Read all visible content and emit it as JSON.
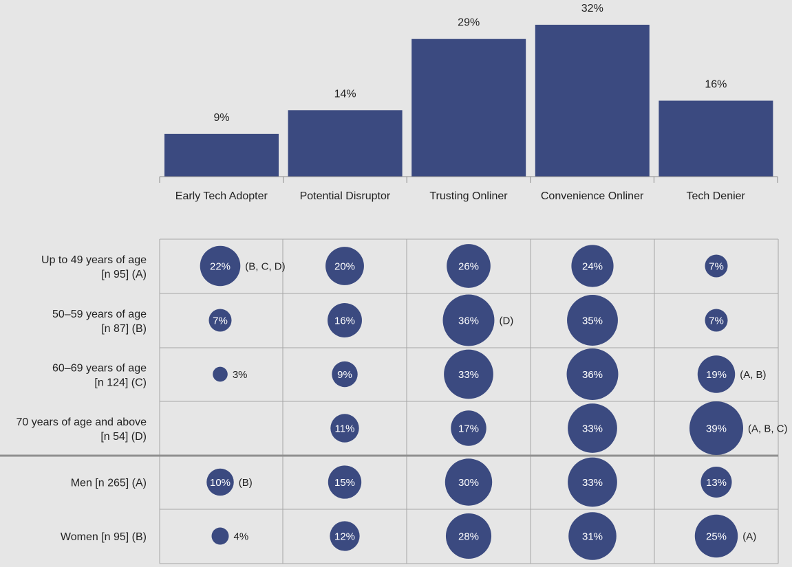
{
  "colors": {
    "bar": "#3b4a80",
    "bubble": "#3b4a80",
    "grid": "#a6a6a6",
    "background": "#e6e6e6",
    "text": "#222222",
    "bubble_text": "#ffffff"
  },
  "chart_data": [
    {
      "type": "bar",
      "categories": [
        "Early Tech Adopter",
        "Potential Disruptor",
        "Trusting Onliner",
        "Convenience Onliner",
        "Tech Denier"
      ],
      "values": [
        9,
        14,
        29,
        32,
        16
      ],
      "value_labels": [
        "9%",
        "14%",
        "29%",
        "32%",
        "16%"
      ],
      "unit": "%",
      "ylim": [
        0,
        32
      ],
      "grid": false,
      "legend": "none"
    },
    {
      "type": "table",
      "subtype": "bubble-matrix",
      "columns": [
        "Early Tech Adopter",
        "Potential Disruptor",
        "Trusting Onliner",
        "Convenience Onliner",
        "Tech Denier"
      ],
      "rows": [
        {
          "label_line1": "Up to 49 years of age",
          "label_line2": "[n 95] (A)",
          "values": [
            22,
            20,
            26,
            24,
            7
          ],
          "labels": [
            "22%",
            "20%",
            "26%",
            "24%",
            "7%"
          ],
          "notes": [
            "(B, C, D)",
            "",
            "",
            "",
            ""
          ]
        },
        {
          "label_line1": "50–59 years of age",
          "label_line2": "[n 87] (B)",
          "values": [
            7,
            16,
            36,
            35,
            7
          ],
          "labels": [
            "7%",
            "16%",
            "36%",
            "35%",
            "7%"
          ],
          "notes": [
            "",
            "",
            "(D)",
            "",
            ""
          ]
        },
        {
          "label_line1": "60–69 years of age",
          "label_line2": "[n 124] (C)",
          "values": [
            3,
            9,
            33,
            36,
            19
          ],
          "labels": [
            "3%",
            "9%",
            "33%",
            "36%",
            "19%"
          ],
          "notes": [
            "",
            "",
            "",
            "",
            "(A, B)"
          ]
        },
        {
          "label_line1": "70 years of age and above",
          "label_line2": "[n 54] (D)",
          "values": [
            null,
            11,
            17,
            33,
            39
          ],
          "labels": [
            "",
            "11%",
            "17%",
            "33%",
            "39%"
          ],
          "notes": [
            "",
            "",
            "",
            "",
            "(A, B, C)"
          ]
        },
        {
          "label_line1": "Men [n 265] (A)",
          "label_line2": "",
          "values": [
            10,
            15,
            30,
            33,
            13
          ],
          "labels": [
            "10%",
            "15%",
            "30%",
            "33%",
            "13%"
          ],
          "notes": [
            "(B)",
            "",
            "",
            "",
            ""
          ]
        },
        {
          "label_line1": "Women [n 95] (B)",
          "label_line2": "",
          "values": [
            4,
            12,
            28,
            31,
            25
          ],
          "labels": [
            "4%",
            "12%",
            "28%",
            "31%",
            "25%"
          ],
          "notes": [
            "",
            "",
            "",
            "",
            "(A)"
          ]
        }
      ],
      "group_separator_after_row": 3
    }
  ]
}
